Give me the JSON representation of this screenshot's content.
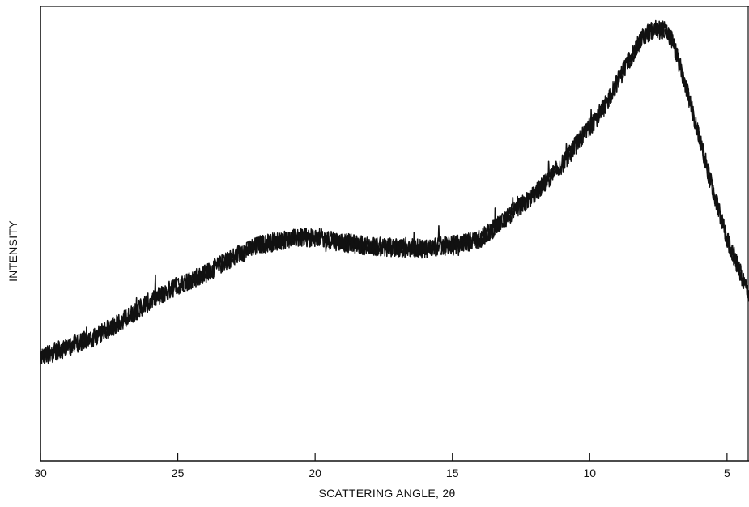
{
  "chart_data": {
    "type": "line",
    "title": "",
    "xlabel": "SCATTERING ANGLE, 2θ",
    "ylabel": "INTENSITY",
    "x_reversed": true,
    "xlim": [
      30,
      4.2
    ],
    "ylim": [
      0,
      100
    ],
    "x_ticks": [
      30,
      25,
      20,
      15,
      10,
      5
    ],
    "x_tick_labels": [
      "30",
      "25",
      "20",
      "15",
      "10",
      "5"
    ],
    "y_ticks": [],
    "grid": false,
    "legend": "none",
    "series": [
      {
        "color": "#111111",
        "x": [
          30,
          29,
          28,
          27,
          26,
          25,
          24,
          23,
          22,
          21,
          20,
          19,
          18,
          17,
          16,
          15,
          14,
          13,
          12,
          11,
          10.5,
          10,
          9.5,
          9,
          8.5,
          8,
          7.6,
          7.3,
          7,
          6.5,
          6,
          5.5,
          5,
          4.5,
          4.2
        ],
        "values": [
          22.7,
          25.1,
          27.3,
          30.9,
          35.2,
          38.6,
          41.2,
          44.8,
          47.6,
          48.8,
          49.2,
          48.1,
          47.3,
          46.9,
          46.7,
          47.5,
          48.7,
          53.6,
          58.7,
          65.3,
          69.5,
          73.5,
          77.5,
          83.3,
          88.9,
          93.8,
          95.0,
          94.8,
          92.8,
          82.4,
          70.8,
          59.1,
          48.8,
          41.2,
          36.6
        ]
      }
    ]
  }
}
